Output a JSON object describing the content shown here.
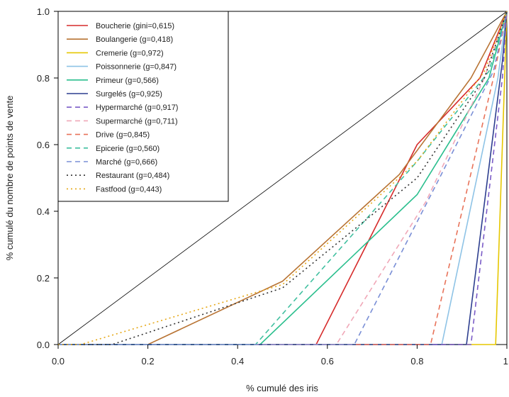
{
  "chart_data": {
    "type": "line",
    "xlabel": "% cumulé des iris",
    "ylabel": "% cumulé du nombre de points de vente",
    "xlim": [
      0,
      1
    ],
    "ylim": [
      0,
      1
    ],
    "x_ticks": [
      "0.0",
      "0.2",
      "0.4",
      "0.6",
      "0.8",
      "1."
    ],
    "y_ticks": [
      "0.0",
      "0.2",
      "0.4",
      "0.6",
      "0.8",
      "1.0"
    ],
    "grid": false,
    "legend_position": "top-left",
    "reference_line": {
      "x": [
        0,
        1
      ],
      "y": [
        0,
        1
      ],
      "color": "#000000"
    },
    "series": [
      {
        "name": "Boucherie (gini=0,615)",
        "color": "#d62b2b",
        "dash": "solid",
        "x": [
          0,
          0.575,
          0.8,
          0.94,
          1.0
        ],
        "y": [
          0,
          0,
          0.6,
          0.8,
          1.0
        ]
      },
      {
        "name": "Boulangerie (g=0,418)",
        "color": "#b87333",
        "dash": "solid",
        "x": [
          0,
          0.2,
          0.5,
          0.76,
          0.92,
          1.0
        ],
        "y": [
          0,
          0,
          0.19,
          0.51,
          0.8,
          1.0
        ]
      },
      {
        "name": "Cremerie (g=0,972)",
        "color": "#e6c700",
        "dash": "solid",
        "x": [
          0,
          0.975,
          1.0
        ],
        "y": [
          0,
          0,
          1.0
        ]
      },
      {
        "name": "Poissonnerie (g=0,847)",
        "color": "#8ec3e6",
        "dash": "solid",
        "x": [
          0,
          0.855,
          0.98,
          1.0
        ],
        "y": [
          0,
          0,
          0.8,
          1.0
        ]
      },
      {
        "name": "Primeur (g=0,566)",
        "color": "#2bbf8e",
        "dash": "solid",
        "x": [
          0,
          0.45,
          0.8,
          0.96,
          1.0
        ],
        "y": [
          0,
          0,
          0.45,
          0.8,
          1.0
        ]
      },
      {
        "name": "Surgelés (g=0,925)",
        "color": "#2d3e8f",
        "dash": "solid",
        "x": [
          0,
          0.91,
          0.99,
          1.0
        ],
        "y": [
          0,
          0,
          0.85,
          1.0
        ]
      },
      {
        "name": "Hypermarché (g=0,917)",
        "color": "#7b5cc7",
        "dash": "dashed",
        "x": [
          0,
          0.92,
          0.99,
          1.0
        ],
        "y": [
          0,
          0,
          0.8,
          1.0
        ]
      },
      {
        "name": "Supermarché (g=0,711)",
        "color": "#f0a8b8",
        "dash": "dashed",
        "x": [
          0,
          0.62,
          0.82,
          0.95,
          1.0
        ],
        "y": [
          0,
          0,
          0.43,
          0.8,
          1.0
        ]
      },
      {
        "name": "Drive (g=0,845)",
        "color": "#e8735a",
        "dash": "dashed",
        "x": [
          0,
          0.83,
          0.97,
          1.0
        ],
        "y": [
          0,
          0,
          0.8,
          1.0
        ]
      },
      {
        "name": "Epicerie (g=0,560)",
        "color": "#3fbf9f",
        "dash": "dashed",
        "x": [
          0,
          0.44,
          0.8,
          0.96,
          1.0
        ],
        "y": [
          0,
          0,
          0.55,
          0.82,
          1.0
        ]
      },
      {
        "name": "Marché (g=0,666)",
        "color": "#7a8fd6",
        "dash": "dashed",
        "x": [
          0,
          0.66,
          0.85,
          0.97,
          1.0
        ],
        "y": [
          0,
          0,
          0.5,
          0.82,
          1.0
        ]
      },
      {
        "name": "Restaurant (g=0,484)",
        "color": "#333333",
        "dash": "dotted",
        "x": [
          0,
          0.12,
          0.5,
          0.8,
          0.95,
          1.0
        ],
        "y": [
          0,
          0,
          0.17,
          0.5,
          0.8,
          1.0
        ]
      },
      {
        "name": "Fastfood (g=0,443)",
        "color": "#e6a817",
        "dash": "dotted",
        "x": [
          0,
          0.05,
          0.5,
          0.8,
          0.95,
          1.0
        ],
        "y": [
          0,
          0,
          0.18,
          0.55,
          0.82,
          1.0
        ]
      }
    ]
  }
}
